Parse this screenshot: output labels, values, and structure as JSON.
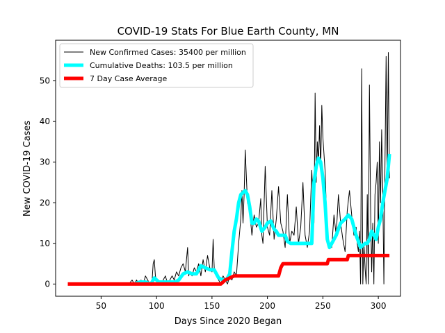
{
  "chart_data": {
    "type": "line",
    "title": "COVID-19 Stats For Blue Earth County, MN",
    "xlabel": "Days Since 2020 Began",
    "ylabel": "New COVID-19 Cases",
    "xlim": [
      9,
      320
    ],
    "ylim": [
      -3,
      60
    ],
    "xticks": [
      50,
      100,
      150,
      200,
      250,
      300
    ],
    "yticks": [
      0,
      10,
      20,
      30,
      40,
      50
    ],
    "grid": false,
    "legend_position": "top-left",
    "series": [
      {
        "name": "New Confirmed Cases: 35400 per million",
        "color": "#000000",
        "line_width": "thin",
        "x": [
          75,
          78,
          80,
          82,
          84,
          86,
          88,
          90,
          92,
          94,
          96,
          97,
          98,
          99,
          100,
          102,
          104,
          106,
          108,
          110,
          112,
          114,
          116,
          118,
          120,
          122,
          124,
          126,
          128,
          129,
          130,
          132,
          134,
          136,
          138,
          140,
          142,
          144,
          146,
          148,
          150,
          151,
          152,
          154,
          156,
          158,
          160,
          162,
          164,
          166,
          168,
          170,
          172,
          174,
          176,
          177,
          178,
          179,
          180,
          182,
          184,
          186,
          188,
          190,
          192,
          194,
          195,
          196,
          198,
          200,
          202,
          204,
          206,
          208,
          210,
          212,
          214,
          216,
          218,
          220,
          222,
          224,
          226,
          228,
          230,
          232,
          234,
          236,
          238,
          240,
          242,
          243,
          244,
          245,
          246,
          247,
          248,
          249,
          250,
          252,
          254,
          256,
          258,
          260,
          262,
          264,
          266,
          268,
          270,
          272,
          274,
          276,
          278,
          280,
          281,
          282,
          283,
          284,
          285,
          286,
          287,
          288,
          289,
          290,
          291,
          292,
          293,
          294,
          295,
          296,
          297,
          298,
          299,
          300,
          301,
          302,
          303,
          304,
          305,
          306,
          307,
          308,
          309,
          310
        ],
        "y": [
          0,
          1,
          0,
          1,
          0,
          1,
          0,
          2,
          1,
          0,
          1,
          5,
          6,
          2,
          1,
          0,
          0,
          1,
          2,
          0,
          1,
          2,
          1,
          3,
          2,
          4,
          5,
          3,
          9,
          2,
          3,
          2,
          4,
          3,
          5,
          2,
          6,
          3,
          7,
          4,
          3,
          11,
          4,
          2,
          1,
          0,
          2,
          1,
          0,
          2,
          1,
          3,
          2,
          10,
          16,
          23,
          15,
          22,
          33,
          20,
          18,
          12,
          17,
          14,
          15,
          21,
          12,
          10,
          29,
          14,
          12,
          23,
          11,
          16,
          24,
          15,
          13,
          9,
          22,
          10,
          13,
          12,
          19,
          10,
          14,
          25,
          12,
          9,
          13,
          28,
          15,
          47,
          25,
          35,
          30,
          39,
          28,
          44,
          36,
          28,
          12,
          10,
          9,
          17,
          12,
          22,
          15,
          11,
          8,
          18,
          23,
          17,
          12,
          14,
          10,
          8,
          13,
          0,
          53,
          0,
          10,
          4,
          0,
          22,
          0,
          49,
          20,
          3,
          15,
          0,
          22,
          25,
          30,
          10,
          35,
          20,
          38,
          23,
          0,
          30,
          56,
          25,
          57,
          26
        ],
        "style": "line"
      },
      {
        "name": "Cumulative Deaths: 103.5 per million",
        "color": "#00ffff",
        "line_width": "thick",
        "x": [
          80,
          85,
          90,
          95,
          98,
          102,
          107,
          112,
          117,
          120,
          124,
          128,
          132,
          136,
          140,
          144,
          148,
          152,
          156,
          160,
          163,
          166,
          168,
          170,
          172,
          174,
          176,
          178,
          180,
          182,
          184,
          186,
          188,
          190,
          192,
          195,
          198,
          200,
          203,
          206,
          208,
          210,
          213,
          216,
          218,
          221,
          225,
          229,
          232,
          236,
          240,
          242,
          244,
          246,
          248,
          250,
          252,
          254,
          256,
          258,
          262,
          266,
          270,
          273,
          276,
          280,
          284,
          288,
          290,
          292,
          294,
          296,
          298,
          300,
          302,
          304,
          306,
          308,
          310
        ],
        "y": [
          0,
          0.5,
          0.5,
          0,
          1.5,
          0.5,
          0.5,
          0.5,
          0.5,
          1,
          2.5,
          3,
          2.5,
          2.5,
          4.5,
          4,
          3.5,
          3.5,
          1.5,
          1,
          1,
          2.5,
          8,
          13,
          16,
          20,
          22,
          22.5,
          23,
          22,
          19,
          15,
          15,
          16,
          15.5,
          13,
          14,
          15,
          15.5,
          13.5,
          13,
          12,
          12,
          12,
          10.5,
          10,
          10,
          10,
          10,
          10,
          10,
          25,
          29,
          31,
          30,
          26,
          20,
          11,
          9,
          10,
          12,
          15,
          16,
          17,
          16,
          12,
          9,
          10,
          10,
          11,
          13,
          12,
          11,
          14,
          16,
          20,
          23,
          26,
          32
        ],
        "style": "line"
      },
      {
        "name": "7 Day Case Average",
        "color": "#ff0000",
        "line_width": "thick",
        "x": [
          20,
          158,
          162,
          170,
          190,
          210,
          212,
          214,
          230,
          254,
          255,
          260,
          272,
          273,
          290,
          310
        ],
        "y": [
          0,
          0,
          1,
          2,
          2,
          2,
          4,
          5,
          5,
          5,
          6,
          6,
          6,
          7,
          7,
          7
        ],
        "style": "line"
      }
    ]
  }
}
